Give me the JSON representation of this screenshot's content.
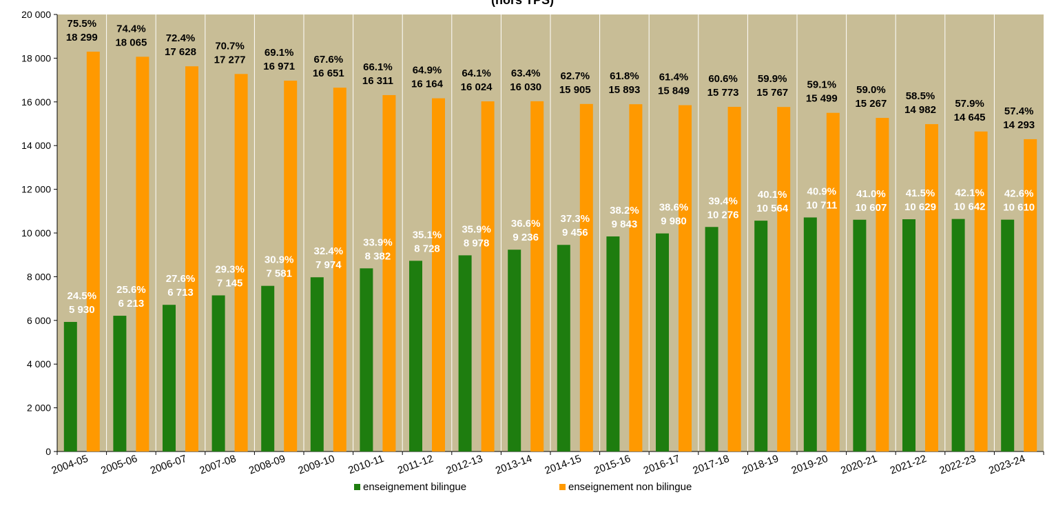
{
  "title": "(hors TPS)",
  "chart_data": {
    "type": "bar",
    "title": "(hors TPS)",
    "xlabel": "",
    "ylabel": "",
    "ylim": [
      0,
      20000
    ],
    "yticks": [
      0,
      2000,
      4000,
      6000,
      8000,
      10000,
      12000,
      14000,
      16000,
      18000,
      20000
    ],
    "ytick_labels": [
      "0",
      "2 000",
      "4 000",
      "6 000",
      "8 000",
      "10 000",
      "12 000",
      "14 000",
      "16 000",
      "18 000",
      "20 000"
    ],
    "grid": "vertical",
    "legend_position": "bottom",
    "categories": [
      "2004-05",
      "2005-06",
      "2006-07",
      "2007-08",
      "2008-09",
      "2009-10",
      "2010-11",
      "2011-12",
      "2012-13",
      "2013-14",
      "2014-15",
      "2015-16",
      "2016-17",
      "2017-18",
      "2018-19",
      "2019-20",
      "2020-21",
      "2021-22",
      "2022-23",
      "2023-24"
    ],
    "series": [
      {
        "name": "enseignement bilingue",
        "color": "#1e7d0f",
        "values": [
          5930,
          6213,
          6713,
          7145,
          7581,
          7974,
          8382,
          8728,
          8978,
          9236,
          9456,
          9843,
          9980,
          10276,
          10564,
          10711,
          10607,
          10629,
          10642,
          10610
        ],
        "value_labels": [
          "5 930",
          "6 213",
          "6 713",
          "7 145",
          "7 581",
          "7 974",
          "8 382",
          "8 728",
          "8 978",
          "9 236",
          "9 456",
          "9 843",
          "9 980",
          "10 276",
          "10 564",
          "10 711",
          "10 607",
          "10 629",
          "10 642",
          "10 610"
        ],
        "percent_labels": [
          "24.5%",
          "25.6%",
          "27.6%",
          "29.3%",
          "30.9%",
          "32.4%",
          "33.9%",
          "35.1%",
          "35.9%",
          "36.6%",
          "37.3%",
          "38.2%",
          "38.6%",
          "39.4%",
          "40.1%",
          "40.9%",
          "41.0%",
          "41.5%",
          "42.1%",
          "42.6%"
        ]
      },
      {
        "name": "enseignement non bilingue",
        "color": "#ff9900",
        "values": [
          18299,
          18065,
          17628,
          17277,
          16971,
          16651,
          16311,
          16164,
          16024,
          16030,
          15905,
          15893,
          15849,
          15773,
          15767,
          15499,
          15267,
          14982,
          14645,
          14293
        ],
        "value_labels": [
          "18 299",
          "18 065",
          "17 628",
          "17 277",
          "16 971",
          "16 651",
          "16 311",
          "16 164",
          "16 024",
          "16 030",
          "15 905",
          "15 893",
          "15 849",
          "15 773",
          "15 767",
          "15 499",
          "15 267",
          "14 982",
          "14 645",
          "14 293"
        ],
        "percent_labels": [
          "75.5%",
          "74.4%",
          "72.4%",
          "70.7%",
          "69.1%",
          "67.6%",
          "66.1%",
          "64.9%",
          "64.1%",
          "63.4%",
          "62.7%",
          "61.8%",
          "61.4%",
          "60.6%",
          "59.9%",
          "59.1%",
          "59.0%",
          "58.5%",
          "57.9%",
          "57.4%"
        ]
      }
    ]
  },
  "colors": {
    "plot_background": "#c8bd96",
    "gridline": "#ffffff",
    "axis": "#000000",
    "label_on_bar": "#ffffff",
    "label_above_bar": "#000000"
  }
}
